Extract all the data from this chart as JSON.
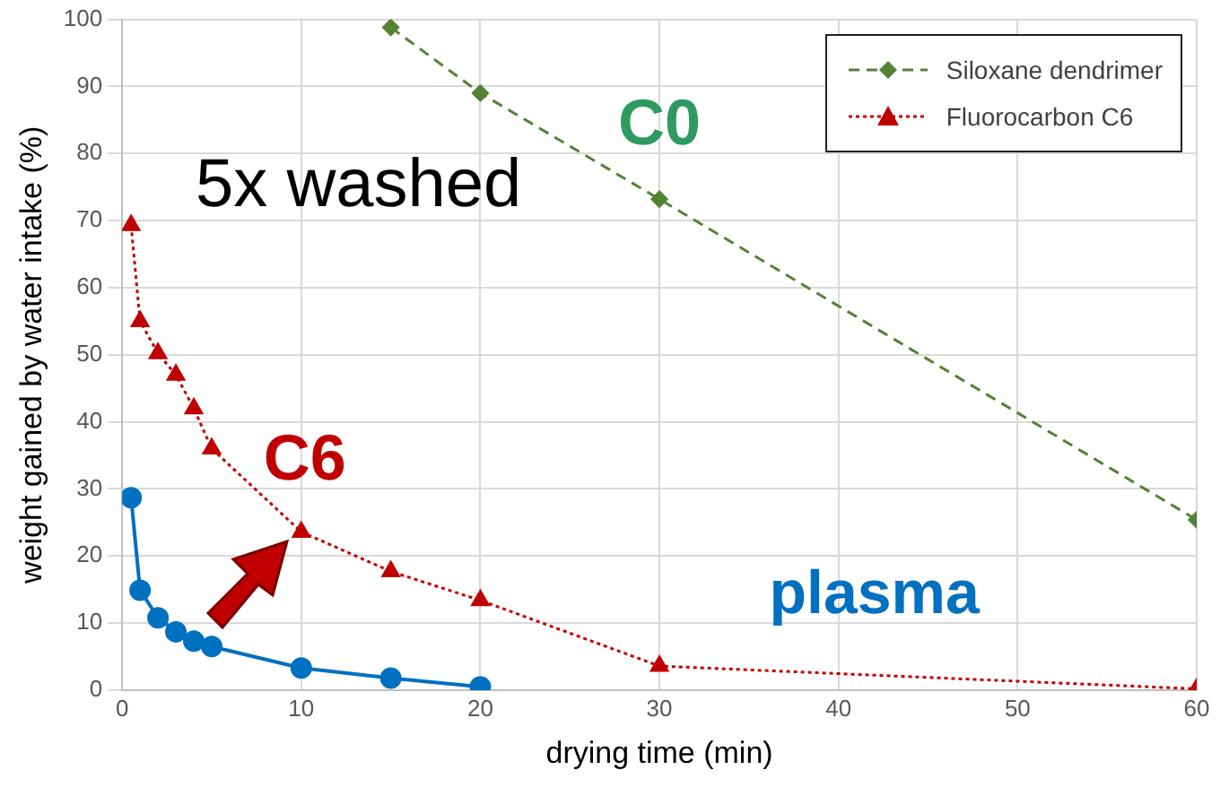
{
  "chart_data": {
    "type": "line",
    "xlabel": "drying time (min)",
    "ylabel": "weight gained by water intake (%)",
    "xlim": [
      0,
      60
    ],
    "xticks": [
      0,
      10,
      20,
      30,
      40,
      50,
      60
    ],
    "ylim": [
      0,
      100
    ],
    "yticks": [
      0,
      10,
      20,
      30,
      40,
      50,
      60,
      70,
      80,
      90,
      100
    ],
    "grid": true,
    "legend": "top right",
    "annotations": [
      "5x washed",
      "C0",
      "C6",
      "plasma"
    ],
    "series": [
      {
        "name": "Siloxane dendrimer",
        "color": "#548235",
        "marker": "diamond",
        "line_style": "dashed",
        "x": [
          15,
          20,
          30,
          60
        ],
        "values": [
          98.8,
          89,
          73.2,
          25.4
        ]
      },
      {
        "name": "Fluorocarbon C6",
        "color": "#c00000",
        "marker": "triangle",
        "line_style": "dotted",
        "x": [
          0.5,
          1,
          2,
          3,
          4,
          5,
          10,
          15,
          20,
          30,
          60
        ],
        "values": [
          69.3,
          55,
          50.2,
          47,
          42,
          36,
          23.6,
          17.7,
          13.4,
          3.6,
          0.2
        ]
      },
      {
        "color": "#0070c0",
        "marker": "circle",
        "line_style": "solid",
        "x": [
          0.5,
          1,
          2,
          3,
          4,
          5,
          10,
          15,
          20
        ],
        "values": [
          28.7,
          14.9,
          10.8,
          8.7,
          7.3,
          6.5,
          3.3,
          1.8,
          0.5
        ]
      }
    ]
  }
}
